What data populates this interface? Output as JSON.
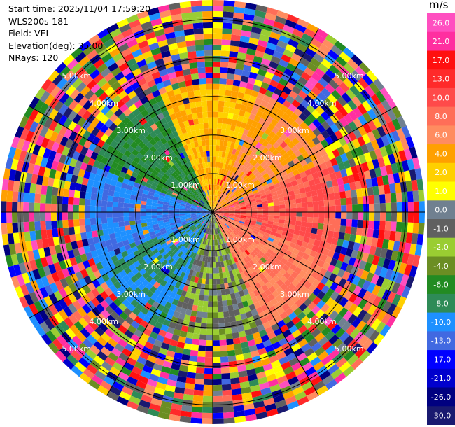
{
  "header": {
    "start_time": "Start time: 2025/11/04 17:59:20",
    "instrument": "WLS200s-181",
    "field": "Field: VEL",
    "elevation": "Elevation(deg): 35.00",
    "nrays": "NRays: 120"
  },
  "colorbar": {
    "unit": "m/s",
    "labels": [
      "26.0",
      "21.0",
      "17.0",
      "13.0",
      "10.0",
      "8.0",
      "6.0",
      "4.0",
      "2.0",
      "1.0",
      "0.0",
      "-1.0",
      "-2.0",
      "-4.0",
      "-6.0",
      "-8.0",
      "-10.0",
      "-13.0",
      "-17.0",
      "-21.0",
      "-26.0",
      "-30.0"
    ],
    "colors": [
      "#ff4fc0",
      "#ff2fa0",
      "#ff1010",
      "#ff2a2a",
      "#ff4a4a",
      "#ff6e58",
      "#ff8c60",
      "#ffa000",
      "#ffd000",
      "#ffff00",
      "#708090",
      "#606060",
      "#9acd32",
      "#6b8e23",
      "#228b22",
      "#2e8b57",
      "#1e90ff",
      "#4169e1",
      "#0000ff",
      "#0000cd",
      "#000080",
      "#191970"
    ]
  },
  "chart_data": {
    "type": "heatmap",
    "subtype": "radar-ppi",
    "field": "VEL",
    "unit": "m/s",
    "elevation_deg": 35.0,
    "n_rays": 120,
    "range_rings_km": [
      1.0,
      2.0,
      3.0,
      4.0,
      5.0
    ],
    "ring_labels": [
      "1.00km",
      "2.00km",
      "3.00km",
      "4.00km",
      "5.00km"
    ],
    "azimuth_lines_deg": [
      0,
      30,
      60,
      90,
      120,
      150,
      180,
      210,
      240,
      270,
      300,
      330
    ],
    "max_range_km": 5.5,
    "color_levels": [
      26.0,
      21.0,
      17.0,
      13.0,
      10.0,
      8.0,
      6.0,
      4.0,
      2.0,
      1.0,
      0.0,
      -1.0,
      -2.0,
      -4.0,
      -6.0,
      -8.0,
      -10.0,
      -13.0,
      -17.0,
      -21.0,
      -26.0,
      -30.0
    ],
    "sector_velocity_ms": [
      {
        "sector": "N",
        "value": 4.0
      },
      {
        "sector": "NE",
        "value": 6.0
      },
      {
        "sector": "E",
        "value": 10.0
      },
      {
        "sector": "SE",
        "value": 8.0
      },
      {
        "sector": "S",
        "value": -1.0
      },
      {
        "sector": "SW",
        "value": -8.0
      },
      {
        "sector": "W",
        "value": -10.0
      },
      {
        "sector": "NW",
        "value": -6.0
      }
    ],
    "noise_beyond_km": 3.2
  }
}
